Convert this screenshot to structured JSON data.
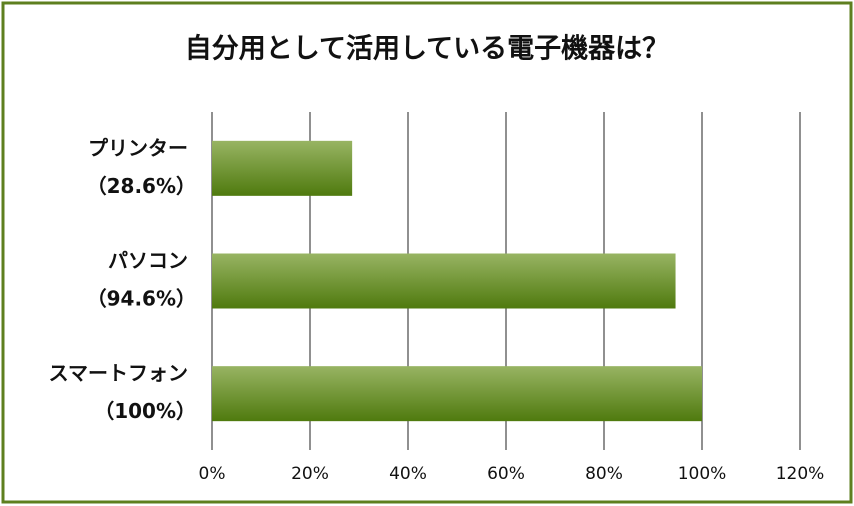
{
  "chart_data": {
    "type": "bar",
    "orientation": "horizontal",
    "title": "自分用として活用している電子機器は？",
    "categories": [
      "プリンター",
      "パソコン",
      "スマートフォン"
    ],
    "values": [
      28.6,
      94.6,
      100
    ],
    "value_labels": [
      "（28.6%）",
      "（94.6%）",
      "（100%）"
    ],
    "color": "#4f7a0e",
    "xlim": [
      0,
      120
    ],
    "xticks": [
      {
        "value": 0,
        "label": "0%"
      },
      {
        "value": 20,
        "label": "20%"
      },
      {
        "value": 40,
        "label": "40%"
      },
      {
        "value": 60,
        "label": "60%"
      },
      {
        "value": 80,
        "label": "80%"
      },
      {
        "value": 100,
        "label": "100%"
      },
      {
        "value": 120,
        "label": "120%"
      }
    ],
    "grid": true
  }
}
